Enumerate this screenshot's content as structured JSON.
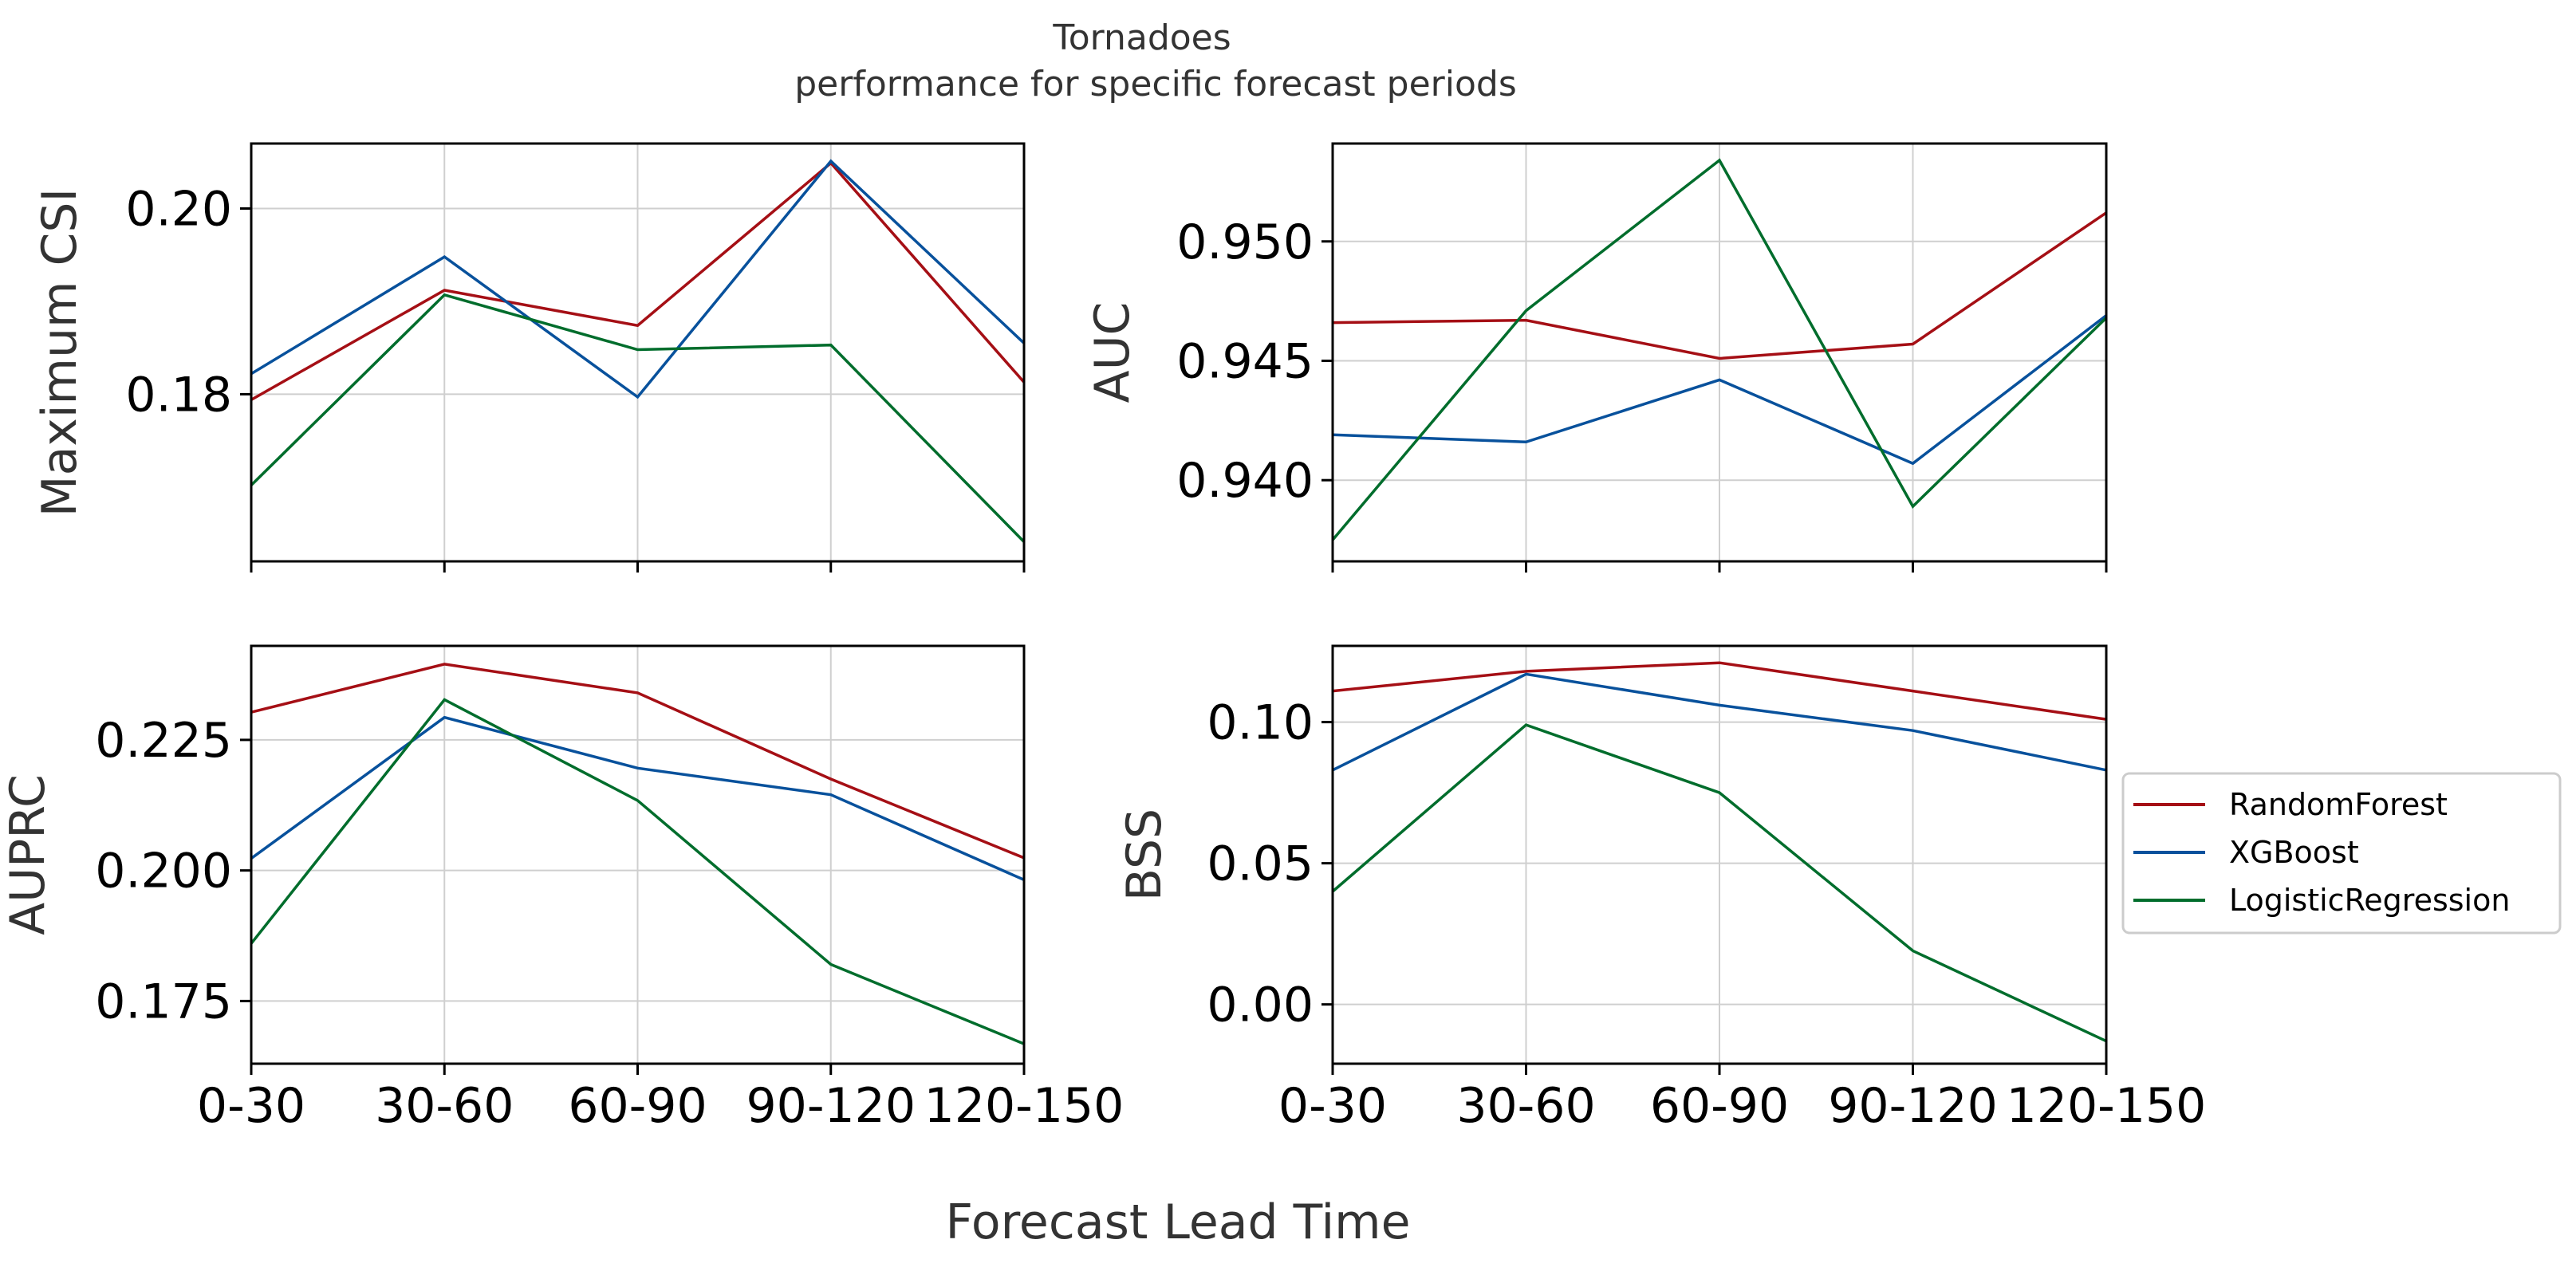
{
  "figure": {
    "title": "Tornadoes",
    "subtitle": "performance for specific forecast periods",
    "xlabel": "Forecast Lead Time"
  },
  "legend": {
    "placement": "right",
    "entries": [
      {
        "name": "RandomForest",
        "color": "#a50f15"
      },
      {
        "name": "XGBoost",
        "color": "#08519c"
      },
      {
        "name": "LogisticRegression",
        "color": "#006d2c"
      }
    ]
  },
  "chart_data": [
    {
      "type": "line",
      "ylabel": "Maximum CSI",
      "categories": [
        "0-30",
        "30-60",
        "60-90",
        "90-120",
        "120-150"
      ],
      "ylim": [
        0.162,
        0.207
      ],
      "yticks": [
        0.18,
        0.2
      ],
      "ytick_labels": [
        "0.18",
        "0.20"
      ],
      "grid": true,
      "series": [
        {
          "name": "RandomForest",
          "color": "#a50f15",
          "values": [
            0.1794,
            0.1912,
            0.1874,
            0.2049,
            0.1813
          ]
        },
        {
          "name": "XGBoost",
          "color": "#08519c",
          "values": [
            0.1822,
            0.1948,
            0.1797,
            0.2051,
            0.1855
          ]
        },
        {
          "name": "LogisticRegression",
          "color": "#006d2c",
          "values": [
            0.1702,
            0.1907,
            0.1848,
            0.1853,
            0.1641
          ]
        }
      ]
    },
    {
      "type": "line",
      "ylabel": "AUC",
      "categories": [
        "0-30",
        "30-60",
        "60-90",
        "90-120",
        "120-150"
      ],
      "ylim": [
        0.9366,
        0.9541
      ],
      "yticks": [
        0.94,
        0.945,
        0.95
      ],
      "ytick_labels": [
        "0.940",
        "0.945",
        "0.950"
      ],
      "grid": true,
      "series": [
        {
          "name": "RandomForest",
          "color": "#a50f15",
          "values": [
            0.9466,
            0.9467,
            0.9451,
            0.9457,
            0.9512
          ]
        },
        {
          "name": "XGBoost",
          "color": "#08519c",
          "values": [
            0.9419,
            0.9416,
            0.9442,
            0.9407,
            0.9469
          ]
        },
        {
          "name": "LogisticRegression",
          "color": "#006d2c",
          "values": [
            0.9375,
            0.9471,
            0.9534,
            0.9389,
            0.9468
          ]
        }
      ]
    },
    {
      "type": "line",
      "ylabel": "AUPRC",
      "categories": [
        "0-30",
        "30-60",
        "60-90",
        "90-120",
        "120-150"
      ],
      "ylim": [
        0.163,
        0.243
      ],
      "yticks": [
        0.175,
        0.2,
        0.225
      ],
      "ytick_labels": [
        "0.175",
        "0.200",
        "0.225"
      ],
      "grid": true,
      "series": [
        {
          "name": "RandomForest",
          "color": "#a50f15",
          "values": [
            0.2303,
            0.2395,
            0.234,
            0.2175,
            0.2024
          ]
        },
        {
          "name": "XGBoost",
          "color": "#08519c",
          "values": [
            0.2023,
            0.2293,
            0.2196,
            0.2145,
            0.1982
          ]
        },
        {
          "name": "LogisticRegression",
          "color": "#006d2c",
          "values": [
            0.186,
            0.2327,
            0.2134,
            0.182,
            0.1668
          ]
        }
      ]
    },
    {
      "type": "line",
      "ylabel": "BSS",
      "categories": [
        "0-30",
        "30-60",
        "60-90",
        "90-120",
        "120-150"
      ],
      "ylim": [
        -0.021,
        0.127
      ],
      "yticks": [
        0.0,
        0.05,
        0.1
      ],
      "ytick_labels": [
        "0.00",
        "0.05",
        "0.10"
      ],
      "grid": true,
      "series": [
        {
          "name": "RandomForest",
          "color": "#a50f15",
          "values": [
            0.111,
            0.118,
            0.121,
            0.111,
            0.101
          ]
        },
        {
          "name": "XGBoost",
          "color": "#08519c",
          "values": [
            0.083,
            0.117,
            0.106,
            0.097,
            0.083
          ]
        },
        {
          "name": "LogisticRegression",
          "color": "#006d2c",
          "values": [
            0.04,
            0.099,
            0.075,
            0.019,
            -0.013
          ]
        }
      ]
    }
  ]
}
